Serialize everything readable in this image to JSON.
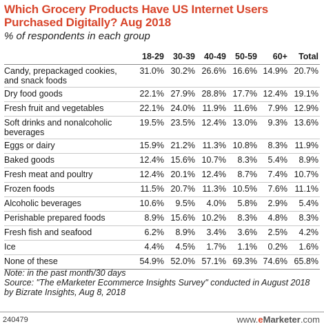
{
  "title": "Which Grocery Products Have US Internet Users Purchased Digitally? Aug 2018",
  "subtitle": "% of respondents in each group",
  "chart_data": {
    "type": "table",
    "columns": [
      "18-29",
      "30-39",
      "40-49",
      "50-59",
      "60+",
      "Total"
    ],
    "rows": [
      {
        "label": "Candy, prepackaged cookies, and snack foods",
        "values": [
          "31.0%",
          "30.2%",
          "26.6%",
          "16.6%",
          "14.9%",
          "20.7%"
        ]
      },
      {
        "label": "Dry food goods",
        "values": [
          "22.1%",
          "27.9%",
          "28.8%",
          "17.7%",
          "12.4%",
          "19.1%"
        ]
      },
      {
        "label": "Fresh fruit and vegetables",
        "values": [
          "22.1%",
          "24.0%",
          "11.9%",
          "11.6%",
          "7.9%",
          "12.9%"
        ]
      },
      {
        "label": "Soft drinks and nonalcoholic beverages",
        "values": [
          "19.5%",
          "23.5%",
          "12.4%",
          "13.0%",
          "9.3%",
          "13.6%"
        ]
      },
      {
        "label": "Eggs or dairy",
        "values": [
          "15.9%",
          "21.2%",
          "11.3%",
          "10.8%",
          "8.3%",
          "11.9%"
        ]
      },
      {
        "label": "Baked goods",
        "values": [
          "12.4%",
          "15.6%",
          "10.7%",
          "8.3%",
          "5.4%",
          "8.9%"
        ]
      },
      {
        "label": "Fresh meat and poultry",
        "values": [
          "12.4%",
          "20.1%",
          "12.4%",
          "8.7%",
          "7.4%",
          "10.7%"
        ]
      },
      {
        "label": "Frozen foods",
        "values": [
          "11.5%",
          "20.7%",
          "11.3%",
          "10.5%",
          "7.6%",
          "11.1%"
        ]
      },
      {
        "label": "Alcoholic beverages",
        "values": [
          "10.6%",
          "9.5%",
          "4.0%",
          "5.8%",
          "2.9%",
          "5.4%"
        ]
      },
      {
        "label": "Perishable prepared foods",
        "values": [
          "8.9%",
          "15.6%",
          "10.2%",
          "8.3%",
          "4.8%",
          "8.3%"
        ]
      },
      {
        "label": "Fresh fish and seafood",
        "values": [
          "6.2%",
          "8.9%",
          "3.4%",
          "3.6%",
          "2.5%",
          "4.2%"
        ]
      },
      {
        "label": "Ice",
        "values": [
          "4.4%",
          "4.5%",
          "1.7%",
          "1.1%",
          "0.2%",
          "1.6%"
        ]
      },
      {
        "label": "None of these",
        "values": [
          "54.9%",
          "52.0%",
          "57.1%",
          "69.3%",
          "74.6%",
          "65.8%"
        ]
      }
    ]
  },
  "note": "Note: in the past month/30 days",
  "source": "Source: \"The eMarketer Ecommerce Insights Survey\" conducted in August 2018 by Bizrate Insights, Aug 8, 2018",
  "footer": {
    "code": "240479",
    "brand_prefix": "www.",
    "brand_e": "e",
    "brand_name": "Marketer",
    "brand_suffix": ".com"
  },
  "colors": {
    "title": "#d8452b",
    "brand_accent": "#d8452b"
  }
}
